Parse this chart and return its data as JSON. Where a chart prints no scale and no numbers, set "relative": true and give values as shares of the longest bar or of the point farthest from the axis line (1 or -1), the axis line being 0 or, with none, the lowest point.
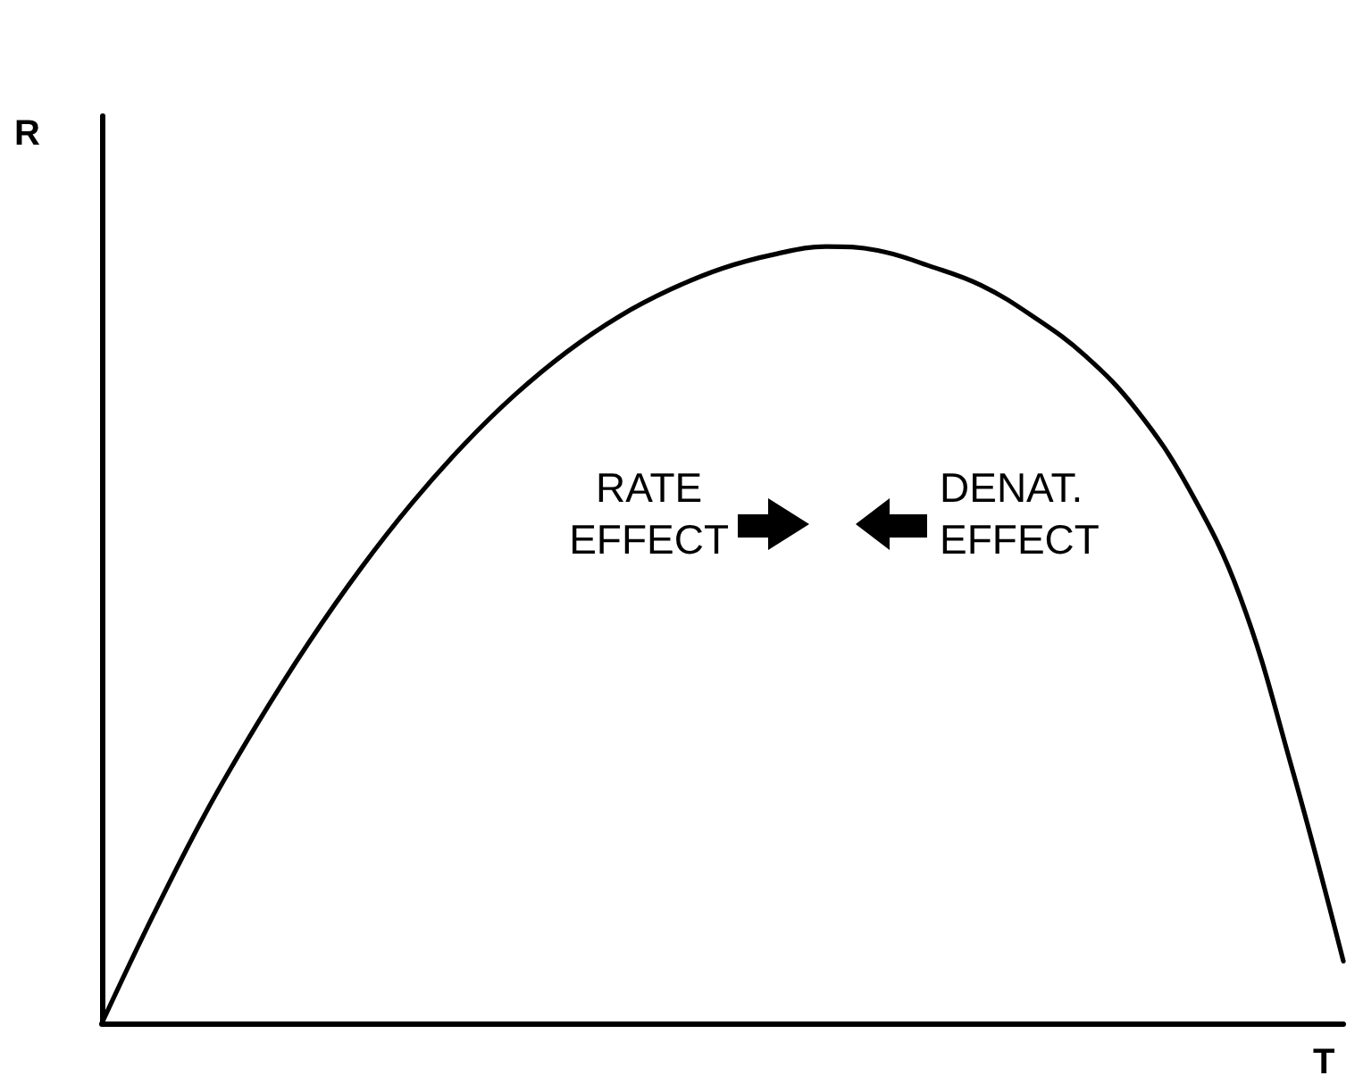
{
  "chart_data": {
    "type": "line",
    "relative": true,
    "xlabel": "T",
    "ylabel": "R",
    "categories": [
      null,
      null,
      null,
      null,
      null,
      null,
      null,
      null,
      null,
      null,
      null,
      null,
      null,
      null,
      null,
      null,
      null,
      null,
      null,
      null,
      null,
      null,
      null,
      null,
      null
    ],
    "series": [
      {
        "color": "#000000",
        "values": [
          0,
          0.14,
          0.27,
          0.385,
          0.49,
          0.585,
          0.67,
          0.745,
          0.81,
          0.865,
          0.91,
          0.945,
          0.972,
          0.99,
          1,
          0.995,
          0.975,
          0.95,
          0.91,
          0.86,
          0.79,
          0.69,
          0.55,
          0.33,
          0.08
        ]
      }
    ],
    "marker": "none",
    "line_style": "solid",
    "annotations": [
      "RATE EFFECT",
      "DENAT. EFFECT"
    ]
  }
}
